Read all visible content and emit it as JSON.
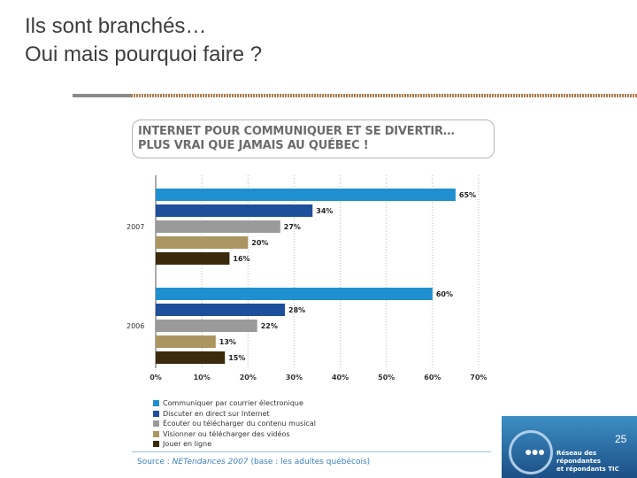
{
  "slide": {
    "title_line1": "Ils sont branchés…",
    "title_line2": "Oui mais pourquoi faire ?",
    "page_number": "25"
  },
  "chart_header": "INTERNET POUR COMMUNIQUER ET SE DIVERTIR…\nPLUS VRAI QUE JAMAIS AU QUÉBEC !",
  "chart_data": {
    "type": "bar",
    "orientation": "horizontal",
    "title": "INTERNET POUR COMMUNIQUER ET SE DIVERTIR… PLUS VRAI QUE JAMAIS AU QUÉBEC !",
    "groups": [
      "2007",
      "2006"
    ],
    "series": [
      {
        "name": "Communiquer par courrier électronique",
        "color": "#1f8fcf",
        "values": [
          65,
          60
        ],
        "labels": [
          "65%",
          "60%"
        ]
      },
      {
        "name": "Discuter en direct sur Internet",
        "color": "#1d4f9a",
        "values": [
          34,
          28
        ],
        "labels": [
          "34%",
          "28%"
        ]
      },
      {
        "name": "Écouter ou télécharger du contenu musical",
        "color": "#9a9a9a",
        "values": [
          27,
          22
        ],
        "labels": [
          "27%",
          "22%"
        ]
      },
      {
        "name": "Visionner ou télécharger des vidéos",
        "color": "#ab9560",
        "values": [
          20,
          13
        ],
        "labels": [
          "20%",
          "13%"
        ]
      },
      {
        "name": "Jouer en ligne",
        "color": "#3b2a0c",
        "values": [
          16,
          15
        ],
        "labels": [
          "16%",
          "15%"
        ]
      }
    ],
    "xlim": [
      0,
      70
    ],
    "xticks": [
      "0%",
      "10%",
      "20%",
      "30%",
      "40%",
      "50%",
      "60%",
      "70%"
    ],
    "grid": "vertical dotted",
    "legend": "bottom"
  },
  "source": {
    "prefix": "Source : ",
    "name": "NETendances 2007",
    "suffix": " (base : les adultes québécois)"
  },
  "logo": {
    "text": "Réseau des répondantes\net répondants TIC",
    "dots": "●●●"
  },
  "colors": {
    "title": "#3d3d3d",
    "source_blue": "#3a80c4",
    "logo_bg": "#2b6fab"
  }
}
